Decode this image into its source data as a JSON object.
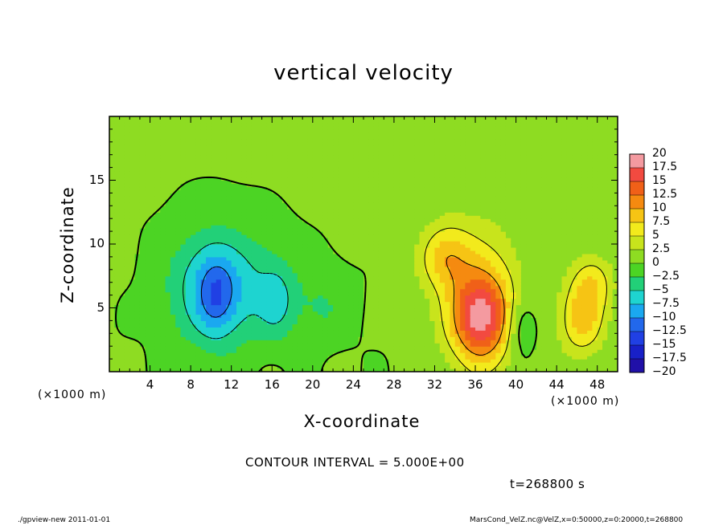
{
  "chart_data": {
    "type": "heatmap",
    "title": "vertical velocity",
    "xlabel": "X-coordinate",
    "ylabel": "Z-coordinate",
    "x_unit_label": "(×1000 m)",
    "y_unit_label": "(×1000 m)",
    "xlim": [
      0,
      50
    ],
    "ylim": [
      0,
      20
    ],
    "x_ticks": [
      4,
      8,
      12,
      16,
      20,
      24,
      28,
      32,
      36,
      40,
      44,
      48
    ],
    "y_ticks": [
      5,
      10,
      15
    ],
    "grid": false,
    "colorbar": {
      "placement": "right",
      "levels": [
        "20",
        "17.5",
        "15",
        "12.5",
        "10",
        "7.5",
        "5",
        "2.5",
        "0",
        "−2.5",
        "−5",
        "−7.5",
        "−10",
        "−12.5",
        "−15",
        "−17.5",
        "−20"
      ],
      "colors": [
        "#f49aa0",
        "#f24a40",
        "#f06018",
        "#f58a10",
        "#f6c414",
        "#f2ea1c",
        "#c8e41c",
        "#8edc22",
        "#4cd424",
        "#22d078",
        "#1ed4d0",
        "#1aa8f0",
        "#2268ec",
        "#2040e4",
        "#1820c8",
        "#2010a8",
        "#7018c0"
      ]
    },
    "contour_interval_label": "CONTOUR INTERVAL = 5.000E+00",
    "time_label": "t=268800 s",
    "field_features": [
      {
        "kind": "updraft",
        "x": 36.5,
        "z": 4.2,
        "value": 14,
        "sx": 1.9,
        "sz": 2.3
      },
      {
        "kind": "updraft",
        "x": 36.5,
        "z": 6.0,
        "value": 6,
        "sx": 3.0,
        "sz": 4.2
      },
      {
        "kind": "updraft",
        "x": 33.0,
        "z": 9.0,
        "value": 7,
        "sx": 1.8,
        "sz": 1.8
      },
      {
        "kind": "updraft",
        "x": 46.5,
        "z": 4.0,
        "value": 8,
        "sx": 1.6,
        "sz": 2.0
      },
      {
        "kind": "updraft",
        "x": 47.5,
        "z": 7.0,
        "value": 6,
        "sx": 1.5,
        "sz": 1.6
      },
      {
        "kind": "downdraft",
        "x": 10.0,
        "z": 6.5,
        "value": -7,
        "sx": 3.0,
        "sz": 3.2
      },
      {
        "kind": "downdraft",
        "x": 10.5,
        "z": 6.0,
        "value": -5,
        "sx": 1.2,
        "sz": 2.0
      },
      {
        "kind": "downdraft",
        "x": 16.5,
        "z": 5.5,
        "value": -4,
        "sx": 1.2,
        "sz": 2.0
      },
      {
        "kind": "downdraft",
        "x": 14.0,
        "z": 6.5,
        "value": -3,
        "sx": 3.5,
        "sz": 3.0
      },
      {
        "kind": "downdraft",
        "x": 21.0,
        "z": 5.0,
        "value": -2.5,
        "sx": 2.0,
        "sz": 2.0
      },
      {
        "kind": "downdraft",
        "x": 40.5,
        "z": 3.5,
        "value": -4.5,
        "sx": 1.0,
        "sz": 1.6
      }
    ]
  },
  "footer": {
    "left": "./gpview-new   2011-01-01",
    "right": "MarsCond_VelZ.nc@VelZ,x=0:50000,z=0:20000,t=268800"
  }
}
